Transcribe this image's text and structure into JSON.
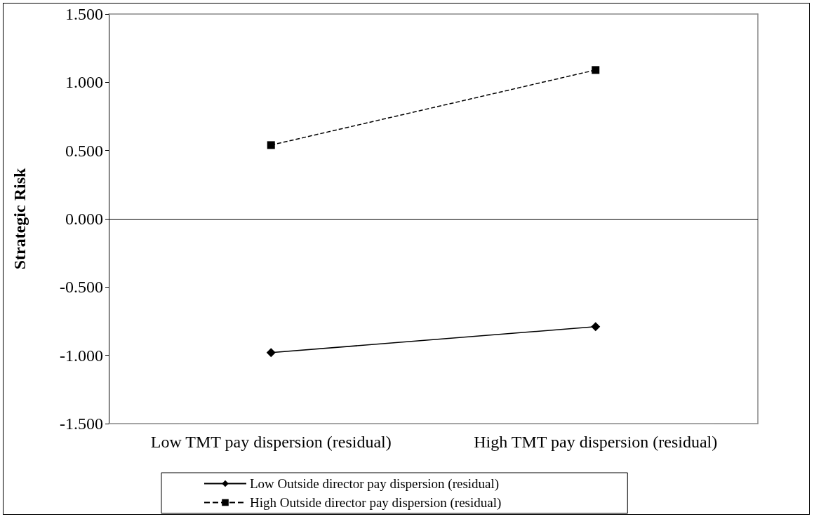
{
  "chart_data": {
    "type": "line",
    "ylabel": "Strategic Risk",
    "categories": [
      "Low TMT pay dispersion (residual)",
      "High TMT pay dispersion (residual)"
    ],
    "series": [
      {
        "name": "Low Outside director pay dispersion (residual)",
        "color": "#000000",
        "values": [
          -0.98,
          -0.79
        ],
        "marker": "diamond",
        "line_style": "solid"
      },
      {
        "name": "High Outside director pay dispersion (residual)",
        "color": "#000000",
        "values": [
          0.54,
          1.09
        ],
        "marker": "square",
        "line_style": "dashed"
      }
    ],
    "ylim": [
      -1.5,
      1.5
    ],
    "yticks": [
      {
        "value": -1.5,
        "label": "-1.500"
      },
      {
        "value": -1,
        "label": "-1.000"
      },
      {
        "value": -0.5,
        "label": "-0.500"
      },
      {
        "value": 0,
        "label": "0.000"
      },
      {
        "value": 0.5,
        "label": "0.500"
      },
      {
        "value": 1,
        "label": "1.000"
      },
      {
        "value": 1.5,
        "label": "1.500"
      }
    ],
    "ref_lines": [
      {
        "axis": "y",
        "value": 0,
        "color": "#000000",
        "line_style": "solid"
      }
    ],
    "grid": false,
    "legend": "bottom"
  }
}
